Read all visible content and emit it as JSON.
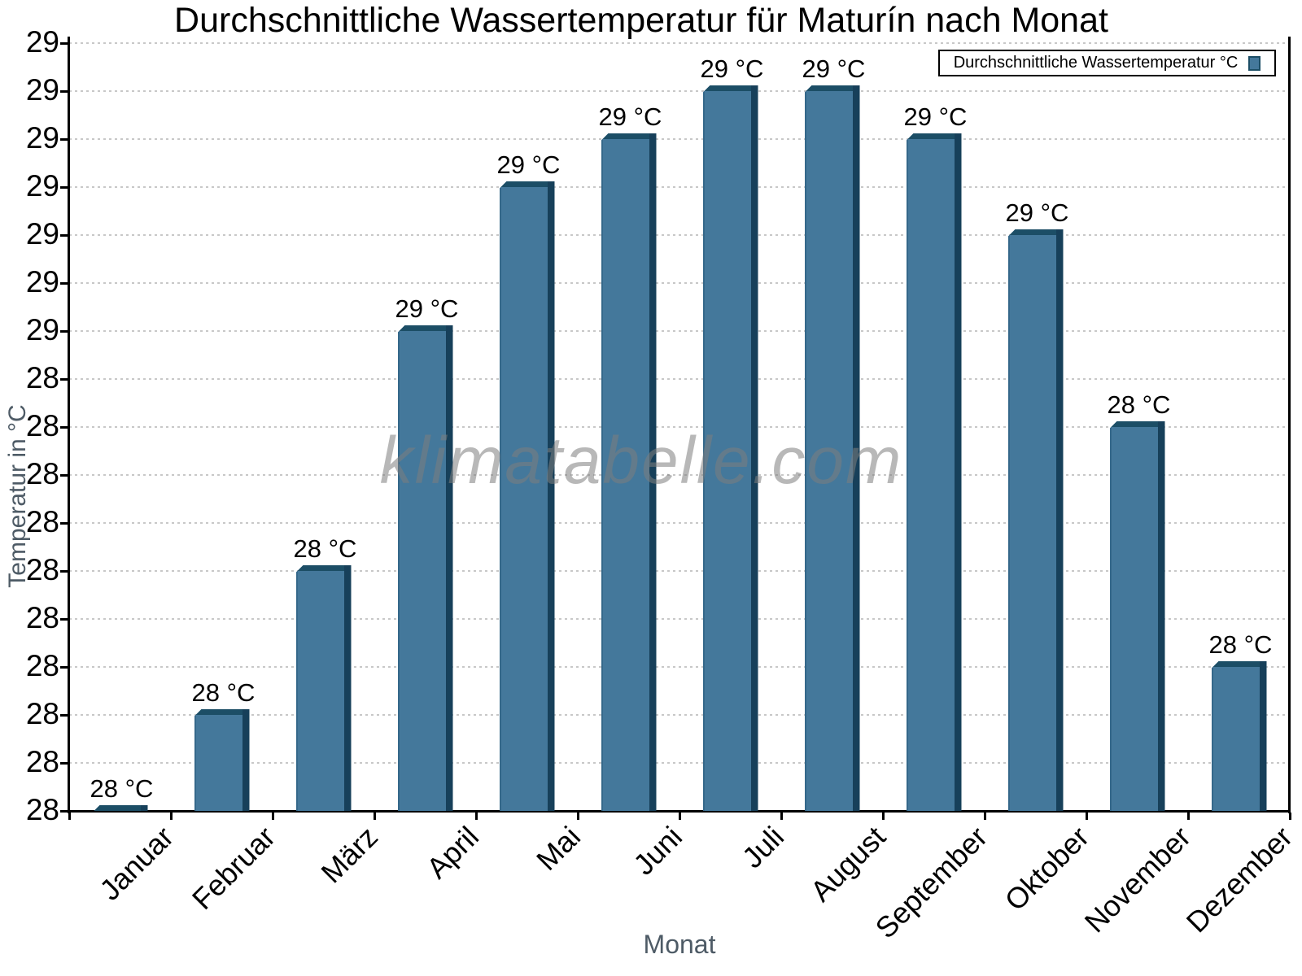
{
  "title": "Durchschnittliche Wassertemperatur für Maturín nach Monat",
  "watermark": "klimatabelle.com",
  "legend": {
    "label": "Durchschnittliche Wassertemperatur °C"
  },
  "axes": {
    "x_label": "Monat",
    "y_label": "Temperatur in °C"
  },
  "chart_data": {
    "type": "bar",
    "title": "Durchschnittliche Wassertemperatur für Maturín nach Monat",
    "xlabel": "Monat",
    "ylabel": "Temperatur in °C",
    "categories": [
      "Januar",
      "Februar",
      "März",
      "April",
      "Mai",
      "Juni",
      "Juli",
      "August",
      "September",
      "Oktober",
      "November",
      "Dezember"
    ],
    "series": [
      {
        "name": "Durchschnittliche Wassertemperatur °C",
        "values": [
          28.0,
          28.1,
          28.25,
          28.5,
          28.65,
          28.7,
          28.75,
          28.75,
          28.7,
          28.6,
          28.4,
          28.15
        ],
        "bar_labels": [
          "28 °C",
          "28 °C",
          "28 °C",
          "29 °C",
          "29 °C",
          "29 °C",
          "29 °C",
          "29 °C",
          "29 °C",
          "29 °C",
          "28 °C",
          "28 °C"
        ]
      }
    ],
    "ylim": [
      28.0,
      28.8
    ],
    "ytick_step": 0.05,
    "ytick_labels": [
      "29",
      "29",
      "29",
      "29",
      "29",
      "29",
      "29",
      "28",
      "28",
      "28",
      "28",
      "28",
      "28",
      "28",
      "28",
      "28",
      "28"
    ],
    "grid": "horizontal-dotted",
    "legend_position": "top-right",
    "colors": {
      "bar_fill": "#44789B",
      "bar_left_shade": "#35688A",
      "bar_edge_top": "#1C4E66",
      "bar_edge_right": "#17405A",
      "gridline": "#C8C8C8",
      "axis": "#000000",
      "axis_title": "#4E5B66",
      "watermark": "#7D7D7D"
    }
  }
}
